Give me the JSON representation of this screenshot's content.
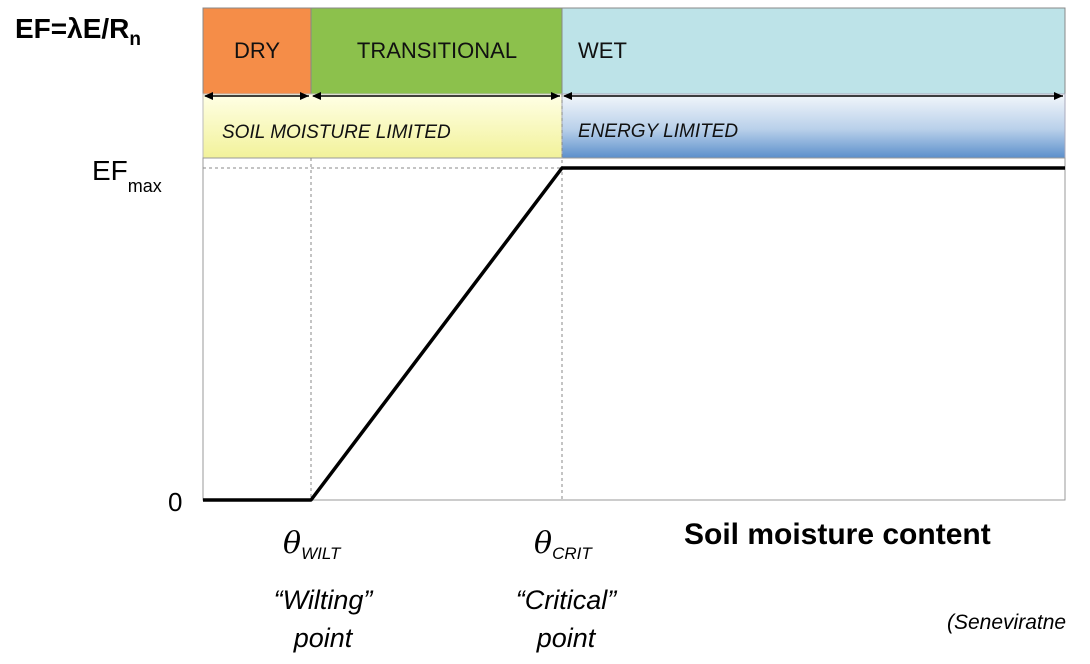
{
  "yaxis": {
    "title_main": "EF=λE/R",
    "title_sub": "n",
    "efmax_main": "EF",
    "efmax_sub": "max",
    "zero_label": "0"
  },
  "regimes": {
    "dry": "DRY",
    "transitional": "TRANSITIONAL",
    "wet": "WET"
  },
  "limits": {
    "soil": "SOIL MOISTURE LIMITED",
    "energy": "ENERGY LIMITED"
  },
  "xaxis": {
    "title": "Soil moisture content",
    "wilt_symbol": "θ",
    "wilt_sub": "WILT",
    "crit_symbol": "θ",
    "crit_sub": "CRIT",
    "wilt_note_line1": "“Wilting”",
    "wilt_note_line2": "point",
    "crit_note_line1": "“Critical”",
    "crit_note_line2": "point"
  },
  "citation": "(Seneviratne",
  "colors": {
    "dry": "#f58d48",
    "transitional": "#8cc14c",
    "wet": "#bde3e8",
    "soil_band": "#f2f29a",
    "energy_band_top": "#eef4fa",
    "energy_band_bottom": "#5b8fcb",
    "curve": "#000000"
  }
}
